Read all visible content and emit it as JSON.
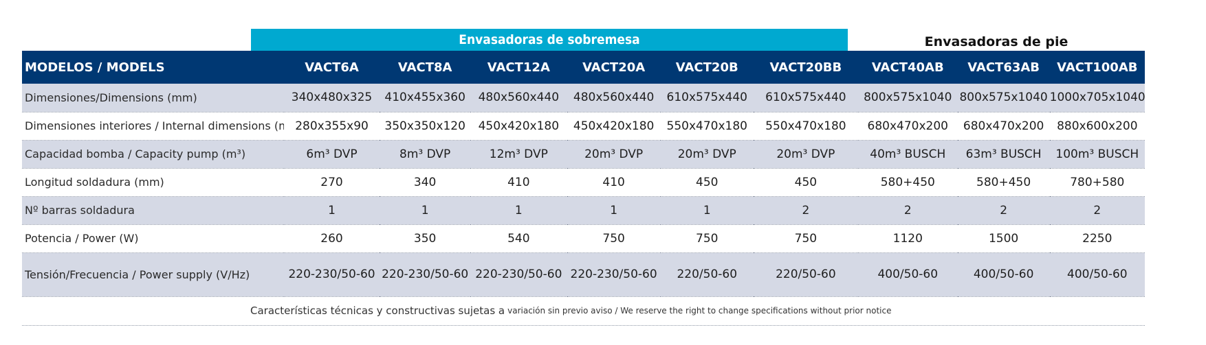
{
  "groups": {
    "tabletop": "Envasadoras de sobremesa",
    "floor": "Envasadoras de pie"
  },
  "header": {
    "label": "MODELOS / MODELS",
    "models": [
      "VACT6A",
      "VACT8A",
      "VACT12A",
      "VACT20A",
      "VACT20B",
      "VACT20BB",
      "VACT40AB",
      "VACT63AB",
      "VACT100AB"
    ]
  },
  "rows": [
    {
      "label": "Dimensiones/Dimensions (mm)",
      "values": [
        "340x480x325",
        "410x455x360",
        "480x560x440",
        "480x560x440",
        "610x575x440",
        "610x575x440",
        "800x575x1040",
        "800x575x1040",
        "1000x705x1040"
      ]
    },
    {
      "label": "Dimensiones interiores / Internal dimensions (mm)",
      "values": [
        "280x355x90",
        "350x350x120",
        "450x420x180",
        "450x420x180",
        "550x470x180",
        "550x470x180",
        "680x470x200",
        "680x470x200",
        "880x600x200"
      ]
    },
    {
      "label": "Capacidad bomba / Capacity pump (m³)",
      "values": [
        "6m³ DVP",
        "8m³ DVP",
        "12m³ DVP",
        "20m³ DVP",
        "20m³ DVP",
        "20m³ DVP",
        "40m³ BUSCH",
        "63m³ BUSCH",
        "100m³ BUSCH"
      ]
    },
    {
      "label": "Longitud soldadura (mm)",
      "values": [
        "270",
        "340",
        "410",
        "410",
        "450",
        "450",
        "580+450",
        "580+450",
        "780+580"
      ]
    },
    {
      "label": "Nº barras soldadura",
      "values": [
        "1",
        "1",
        "1",
        "1",
        "1",
        "2",
        "2",
        "2",
        "2"
      ]
    },
    {
      "label": "Potencia / Power (W)",
      "values": [
        "260",
        "350",
        "540",
        "750",
        "750",
        "750",
        "1120",
        "1500",
        "2250"
      ]
    },
    {
      "label": "Tensión/Frecuencia / Power supply (V/Hz)",
      "values": [
        "220-230/50-60",
        "220-230/50-60",
        "220-230/50-60",
        "220-230/50-60",
        "220/50-60",
        "220/50-60",
        "400/50-60",
        "400/50-60",
        "400/50-60"
      ]
    }
  ],
  "footnote": {
    "main": "Características técnicas y constructivas sujetas a",
    "small": "variación sin previo aviso / We reserve the right to change specifications without prior notice"
  },
  "colors": {
    "header_bg": "#003873",
    "group_bg": "#00a9d0",
    "alt_row_bg": "#d5d9e5"
  }
}
